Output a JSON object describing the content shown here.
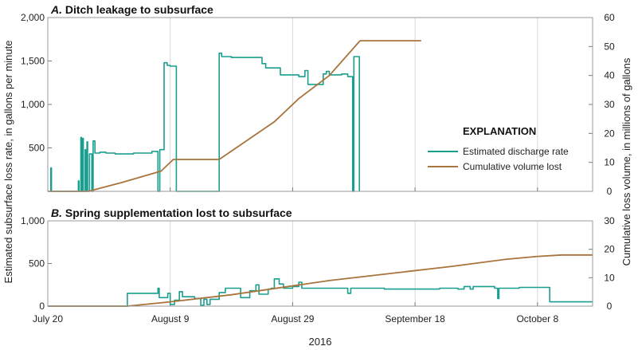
{
  "chart_data": {
    "type": "line",
    "xlabel": "2016",
    "ylabel_left": "Estimated subsurface loss rate, in gallons per minute",
    "ylabel_right": "Cumulative loss volume, in millions of gallons",
    "x_axis": {
      "range_days_from_july_20": [
        0,
        89
      ],
      "tick_labels": [
        "July 20",
        "August 9",
        "August 29",
        "September 18",
        "October 8"
      ],
      "tick_days": [
        0,
        20,
        40,
        60,
        80
      ]
    },
    "legend": {
      "title": "EXPLANATION",
      "placement": "right of panel A",
      "entries": [
        {
          "label": "Estimated discharge rate",
          "color": "#1a9e8f"
        },
        {
          "label": "Cumulative volume lost",
          "color": "#a8743c"
        }
      ]
    },
    "colors": {
      "discharge": "#1a9e8f",
      "cumulative": "#a8743c",
      "frame": "#999999"
    },
    "panels": [
      {
        "title_letter": "A.",
        "title_text": "Ditch leakage to subsurface",
        "ylim_left": [
          0,
          2000
        ],
        "ylim_right": [
          0,
          60
        ],
        "yticks_left": [
          500,
          1000,
          1500,
          2000
        ],
        "yticks_left_labels": [
          "500",
          "1,000",
          "1,500",
          "2,000"
        ],
        "yticks_right": [
          0,
          10,
          20,
          30,
          40,
          50,
          60
        ],
        "series": [
          {
            "name": "Estimated discharge rate",
            "axis": "left",
            "points": [
              [
                0.5,
                0
              ],
              [
                0.5,
                270
              ],
              [
                0.6,
                270
              ],
              [
                0.6,
                0
              ],
              [
                5,
                0
              ],
              [
                5,
                120
              ],
              [
                5.1,
                120
              ],
              [
                5.1,
                0
              ],
              [
                5.4,
                0
              ],
              [
                5.4,
                620
              ],
              [
                5.5,
                620
              ],
              [
                5.5,
                0
              ],
              [
                5.7,
                0
              ],
              [
                5.7,
                610
              ],
              [
                5.8,
                610
              ],
              [
                5.8,
                0
              ],
              [
                6.1,
                0
              ],
              [
                6.1,
                480
              ],
              [
                6.2,
                480
              ],
              [
                6.2,
                0
              ],
              [
                6.4,
                0
              ],
              [
                6.4,
                570
              ],
              [
                6.5,
                570
              ],
              [
                6.5,
                0
              ],
              [
                6.8,
                0
              ],
              [
                6.8,
                430
              ],
              [
                7.2,
                430
              ],
              [
                7.2,
                0
              ],
              [
                7.4,
                0
              ],
              [
                7.4,
                580
              ],
              [
                7.7,
                580
              ],
              [
                7.7,
                440
              ],
              [
                8.5,
                440
              ],
              [
                8.5,
                450
              ],
              [
                9.5,
                450
              ],
              [
                9.5,
                440
              ],
              [
                11,
                440
              ],
              [
                11,
                430
              ],
              [
                14,
                430
              ],
              [
                14,
                440
              ],
              [
                17,
                440
              ],
              [
                17,
                460
              ],
              [
                18,
                460
              ],
              [
                18,
                0
              ],
              [
                18.3,
                0
              ],
              [
                18.3,
                480
              ],
              [
                19,
                480
              ],
              [
                19,
                1480
              ],
              [
                19.5,
                1480
              ],
              [
                19.5,
                1450
              ],
              [
                20,
                1450
              ],
              [
                20,
                1440
              ],
              [
                21,
                1440
              ],
              [
                21,
                0
              ],
              [
                28,
                0
              ],
              [
                28,
                1590
              ],
              [
                28.4,
                1590
              ],
              [
                28.4,
                1550
              ],
              [
                30,
                1550
              ],
              [
                30,
                1540
              ],
              [
                35,
                1540
              ],
              [
                35,
                1470
              ],
              [
                35.6,
                1470
              ],
              [
                35.6,
                1420
              ],
              [
                38,
                1420
              ],
              [
                38,
                1340
              ],
              [
                41,
                1340
              ],
              [
                41,
                1320
              ],
              [
                42,
                1320
              ],
              [
                42,
                1390
              ],
              [
                42.5,
                1390
              ],
              [
                42.5,
                1230
              ],
              [
                45,
                1230
              ],
              [
                45,
                1350
              ],
              [
                45.5,
                1350
              ],
              [
                45.5,
                1380
              ],
              [
                46,
                1380
              ],
              [
                46,
                1340
              ],
              [
                48,
                1340
              ],
              [
                48,
                1350
              ],
              [
                49,
                1350
              ],
              [
                49,
                1320
              ],
              [
                49.8,
                1320
              ],
              [
                49.8,
                0
              ],
              [
                50,
                0
              ],
              [
                50,
                1550
              ],
              [
                50.9,
                1550
              ],
              [
                50.9,
                0
              ]
            ]
          },
          {
            "name": "Cumulative volume lost",
            "axis": "right",
            "points": [
              [
                0,
                0
              ],
              [
                6.5,
                0
              ],
              [
                7.5,
                0.5
              ],
              [
                12,
                3
              ],
              [
                18.5,
                7
              ],
              [
                20.5,
                11
              ],
              [
                28,
                11
              ],
              [
                37,
                24
              ],
              [
                41,
                32
              ],
              [
                46,
                40
              ],
              [
                51,
                52
              ],
              [
                61,
                52
              ]
            ]
          }
        ]
      },
      {
        "title_letter": "B.",
        "title_text": "Spring supplementation lost to subsurface",
        "ylim_left": [
          0,
          1000
        ],
        "ylim_right": [
          0,
          30
        ],
        "yticks_left": [
          0,
          500,
          1000
        ],
        "yticks_left_labels": [
          "0",
          "500",
          "1,000"
        ],
        "yticks_right": [
          0,
          10,
          20,
          30
        ],
        "series": [
          {
            "name": "Estimated discharge rate",
            "axis": "left",
            "points": [
              [
                0,
                0
              ],
              [
                13,
                0
              ],
              [
                13,
                150
              ],
              [
                18,
                150
              ],
              [
                18,
                210
              ],
              [
                18.2,
                210
              ],
              [
                18.2,
                100
              ],
              [
                19.6,
                100
              ],
              [
                19.6,
                150
              ],
              [
                20,
                150
              ],
              [
                20,
                20
              ],
              [
                20.7,
                20
              ],
              [
                20.7,
                70
              ],
              [
                21.5,
                70
              ],
              [
                21.5,
                170
              ],
              [
                22,
                170
              ],
              [
                22,
                110
              ],
              [
                24,
                110
              ],
              [
                24,
                90
              ],
              [
                25,
                90
              ],
              [
                25,
                10
              ],
              [
                25.5,
                10
              ],
              [
                25.5,
                80
              ],
              [
                26,
                80
              ],
              [
                26,
                20
              ],
              [
                26.5,
                20
              ],
              [
                26.5,
                80
              ],
              [
                28,
                80
              ],
              [
                28,
                160
              ],
              [
                29,
                160
              ],
              [
                29,
                210
              ],
              [
                31.5,
                210
              ],
              [
                31.5,
                100
              ],
              [
                33,
                100
              ],
              [
                33,
                180
              ],
              [
                34,
                180
              ],
              [
                34,
                250
              ],
              [
                34.5,
                250
              ],
              [
                34.5,
                140
              ],
              [
                36,
                140
              ],
              [
                36,
                200
              ],
              [
                36.5,
                200
              ],
              [
                36.5,
                210
              ],
              [
                37,
                210
              ],
              [
                37,
                320
              ],
              [
                37.8,
                320
              ],
              [
                37.8,
                260
              ],
              [
                38.5,
                260
              ],
              [
                38.5,
                210
              ],
              [
                40,
                210
              ],
              [
                40,
                230
              ],
              [
                41,
                230
              ],
              [
                41,
                280
              ],
              [
                41.5,
                280
              ],
              [
                41.5,
                210
              ],
              [
                49,
                210
              ],
              [
                49,
                150
              ],
              [
                49.5,
                150
              ],
              [
                49.5,
                210
              ],
              [
                55,
                210
              ],
              [
                55,
                200
              ],
              [
                64,
                200
              ],
              [
                64,
                210
              ],
              [
                67,
                210
              ],
              [
                67,
                200
              ],
              [
                68,
                200
              ],
              [
                68,
                230
              ],
              [
                69,
                230
              ],
              [
                69,
                200
              ],
              [
                69.5,
                200
              ],
              [
                69.5,
                230
              ],
              [
                73,
                230
              ],
              [
                73,
                210
              ],
              [
                73.5,
                210
              ],
              [
                73.5,
                90
              ],
              [
                73.7,
                90
              ],
              [
                73.7,
                210
              ],
              [
                77,
                210
              ],
              [
                77,
                220
              ],
              [
                82,
                220
              ],
              [
                82,
                50
              ],
              [
                89,
                50
              ]
            ]
          },
          {
            "name": "Cumulative volume lost",
            "axis": "right",
            "points": [
              [
                0,
                0
              ],
              [
                13,
                0
              ],
              [
                20,
                1.5
              ],
              [
                30,
                4
              ],
              [
                38,
                6.5
              ],
              [
                46,
                9
              ],
              [
                56,
                11.5
              ],
              [
                66,
                14
              ],
              [
                75,
                16.5
              ],
              [
                80,
                17.5
              ],
              [
                84,
                18
              ],
              [
                89,
                18
              ]
            ]
          }
        ]
      }
    ]
  }
}
